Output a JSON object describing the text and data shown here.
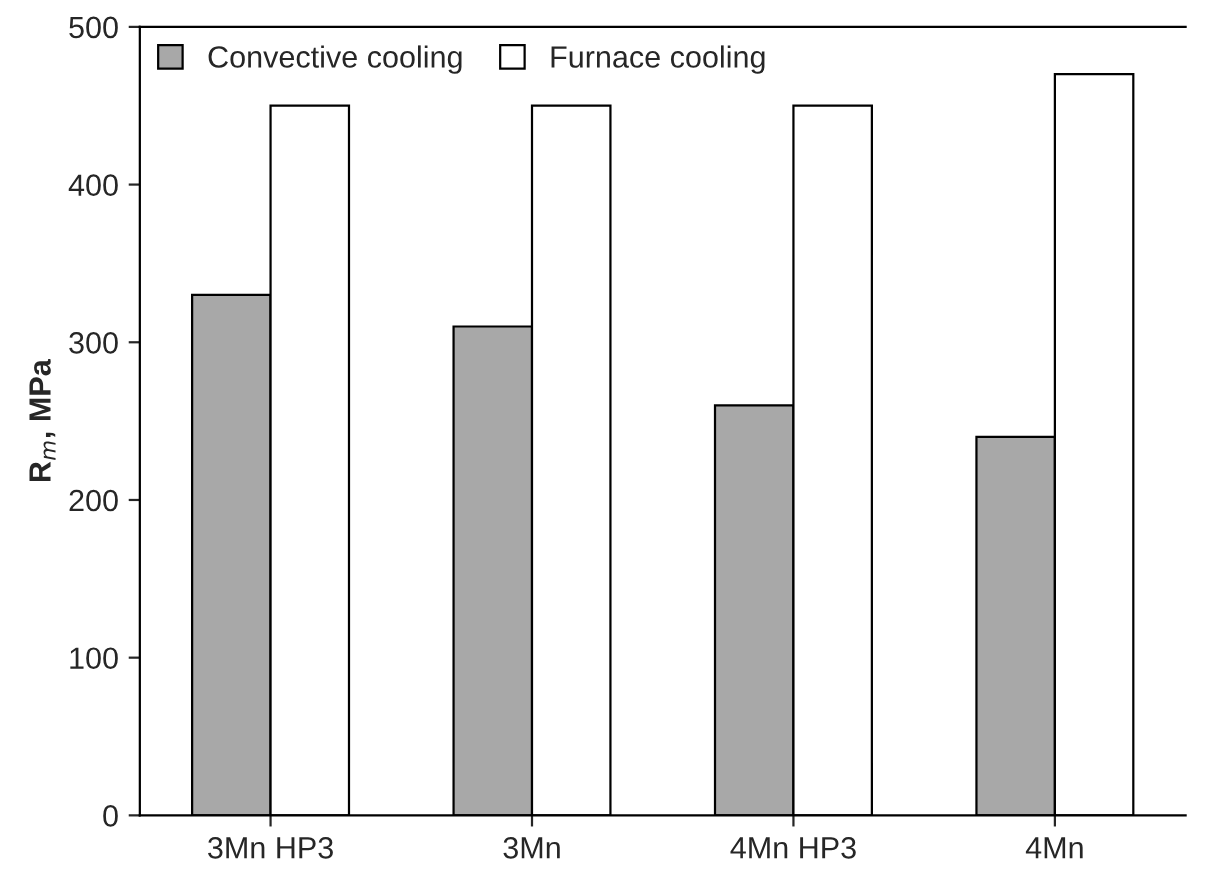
{
  "chart_data": {
    "type": "bar",
    "ylabel": "R$_{m}$, MPa",
    "categories": [
      "3Mn HP3",
      "3Mn",
      "4Mn HP3",
      "4Mn"
    ],
    "series": [
      {
        "name": "Convective cooling",
        "color": "#a8a8a8",
        "values": [
          330,
          310,
          260,
          240
        ]
      },
      {
        "name": "Furnace cooling",
        "color": "#ffffff",
        "values": [
          450,
          450,
          450,
          470
        ]
      }
    ],
    "ylim": [
      0,
      500
    ],
    "yticks": [
      0,
      100,
      200,
      300,
      400,
      500
    ],
    "grid": false,
    "legend": "top left"
  }
}
